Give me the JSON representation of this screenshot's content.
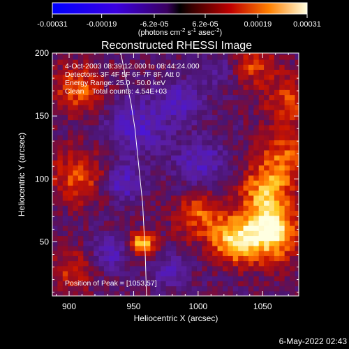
{
  "chart_data": {
    "type": "heatmap",
    "title": "Reconstructed RHESSI Image",
    "xlabel": "Heliocentric X (arcsec)",
    "ylabel": "Heliocentric Y (arcsec)",
    "xlim": [
      887,
      1078
    ],
    "ylim": [
      7,
      200
    ],
    "x_ticks": [
      900,
      950,
      1000,
      1050
    ],
    "y_ticks": [
      50,
      100,
      150,
      200
    ],
    "colorbar": {
      "label_prefix": "(photons cm",
      "label_exp1": "-2",
      "label_mid": " s",
      "label_exp2": "-1",
      "label_suffix": " asec",
      "label_exp3": "-2",
      "label_end": ")",
      "range": [
        -0.00031,
        0.00031
      ],
      "tick_values": [
        -0.00031,
        -0.00019,
        -6.2e-05,
        6.2e-05,
        0.00019,
        0.00031
      ],
      "tick_labels": [
        "-0.00031",
        "-0.00019",
        "-6.2e-05",
        "6.2e-05",
        "0.00019",
        "0.00031"
      ]
    },
    "annotations": [
      "4-Oct-2003 08:39:12.000 to 08:44:24.000",
      "Detectors: 3F 4F 5F 6F 7F 8F, Att 0",
      "Energy Range: 25.0 - 50.0 keV",
      "Clean    Total counts: 4.54E+03"
    ],
    "peak_label": "Position of Peak = [1053,57]",
    "peak": [
      1053,
      57
    ],
    "limb_curve": [
      [
        940,
        200
      ],
      [
        944,
        180
      ],
      [
        948,
        160
      ],
      [
        951,
        140
      ],
      [
        953,
        120
      ],
      [
        955,
        100
      ],
      [
        957,
        80
      ],
      [
        958,
        60
      ],
      [
        959,
        40
      ],
      [
        960,
        7
      ]
    ],
    "intensity_sources": [
      {
        "x": 1053,
        "y": 57,
        "sigma": 16,
        "amplitude": 0.00031
      },
      {
        "x": 1025,
        "y": 48,
        "sigma": 12,
        "amplitude": 0.00022
      },
      {
        "x": 955,
        "y": 47,
        "sigma": 7,
        "amplitude": 0.00025
      },
      {
        "x": 1050,
        "y": 90,
        "sigma": 14,
        "amplitude": 0.00018
      },
      {
        "x": 1065,
        "y": 115,
        "sigma": 14,
        "amplitude": 0.00015
      },
      {
        "x": 1000,
        "y": 70,
        "sigma": 14,
        "amplitude": 0.00016
      },
      {
        "x": 1070,
        "y": 160,
        "sigma": 16,
        "amplitude": 0.00013
      },
      {
        "x": 905,
        "y": 170,
        "sigma": 14,
        "amplitude": 0.00016
      },
      {
        "x": 905,
        "y": 100,
        "sigma": 16,
        "amplitude": 0.00014
      },
      {
        "x": 900,
        "y": 25,
        "sigma": 12,
        "amplitude": 0.00012
      },
      {
        "x": 1040,
        "y": 190,
        "sigma": 12,
        "amplitude": 0.00013
      },
      {
        "x": 985,
        "y": 160,
        "sigma": 12,
        "amplitude": -0.00012
      },
      {
        "x": 950,
        "y": 140,
        "sigma": 16,
        "amplitude": -0.00014
      },
      {
        "x": 1000,
        "y": 110,
        "sigma": 14,
        "amplitude": -0.00013
      },
      {
        "x": 930,
        "y": 40,
        "sigma": 10,
        "amplitude": -0.00012
      },
      {
        "x": 975,
        "y": 25,
        "sigma": 10,
        "amplitude": -0.0001
      },
      {
        "x": 1015,
        "y": 185,
        "sigma": 10,
        "amplitude": -8e-05
      },
      {
        "x": 940,
        "y": 95,
        "sigma": 10,
        "amplitude": -0.00015
      }
    ],
    "grid": false
  },
  "timestamp": "6-May-2022 02:43",
  "colors": {
    "background": "#000000",
    "limb": "#ffffff"
  }
}
